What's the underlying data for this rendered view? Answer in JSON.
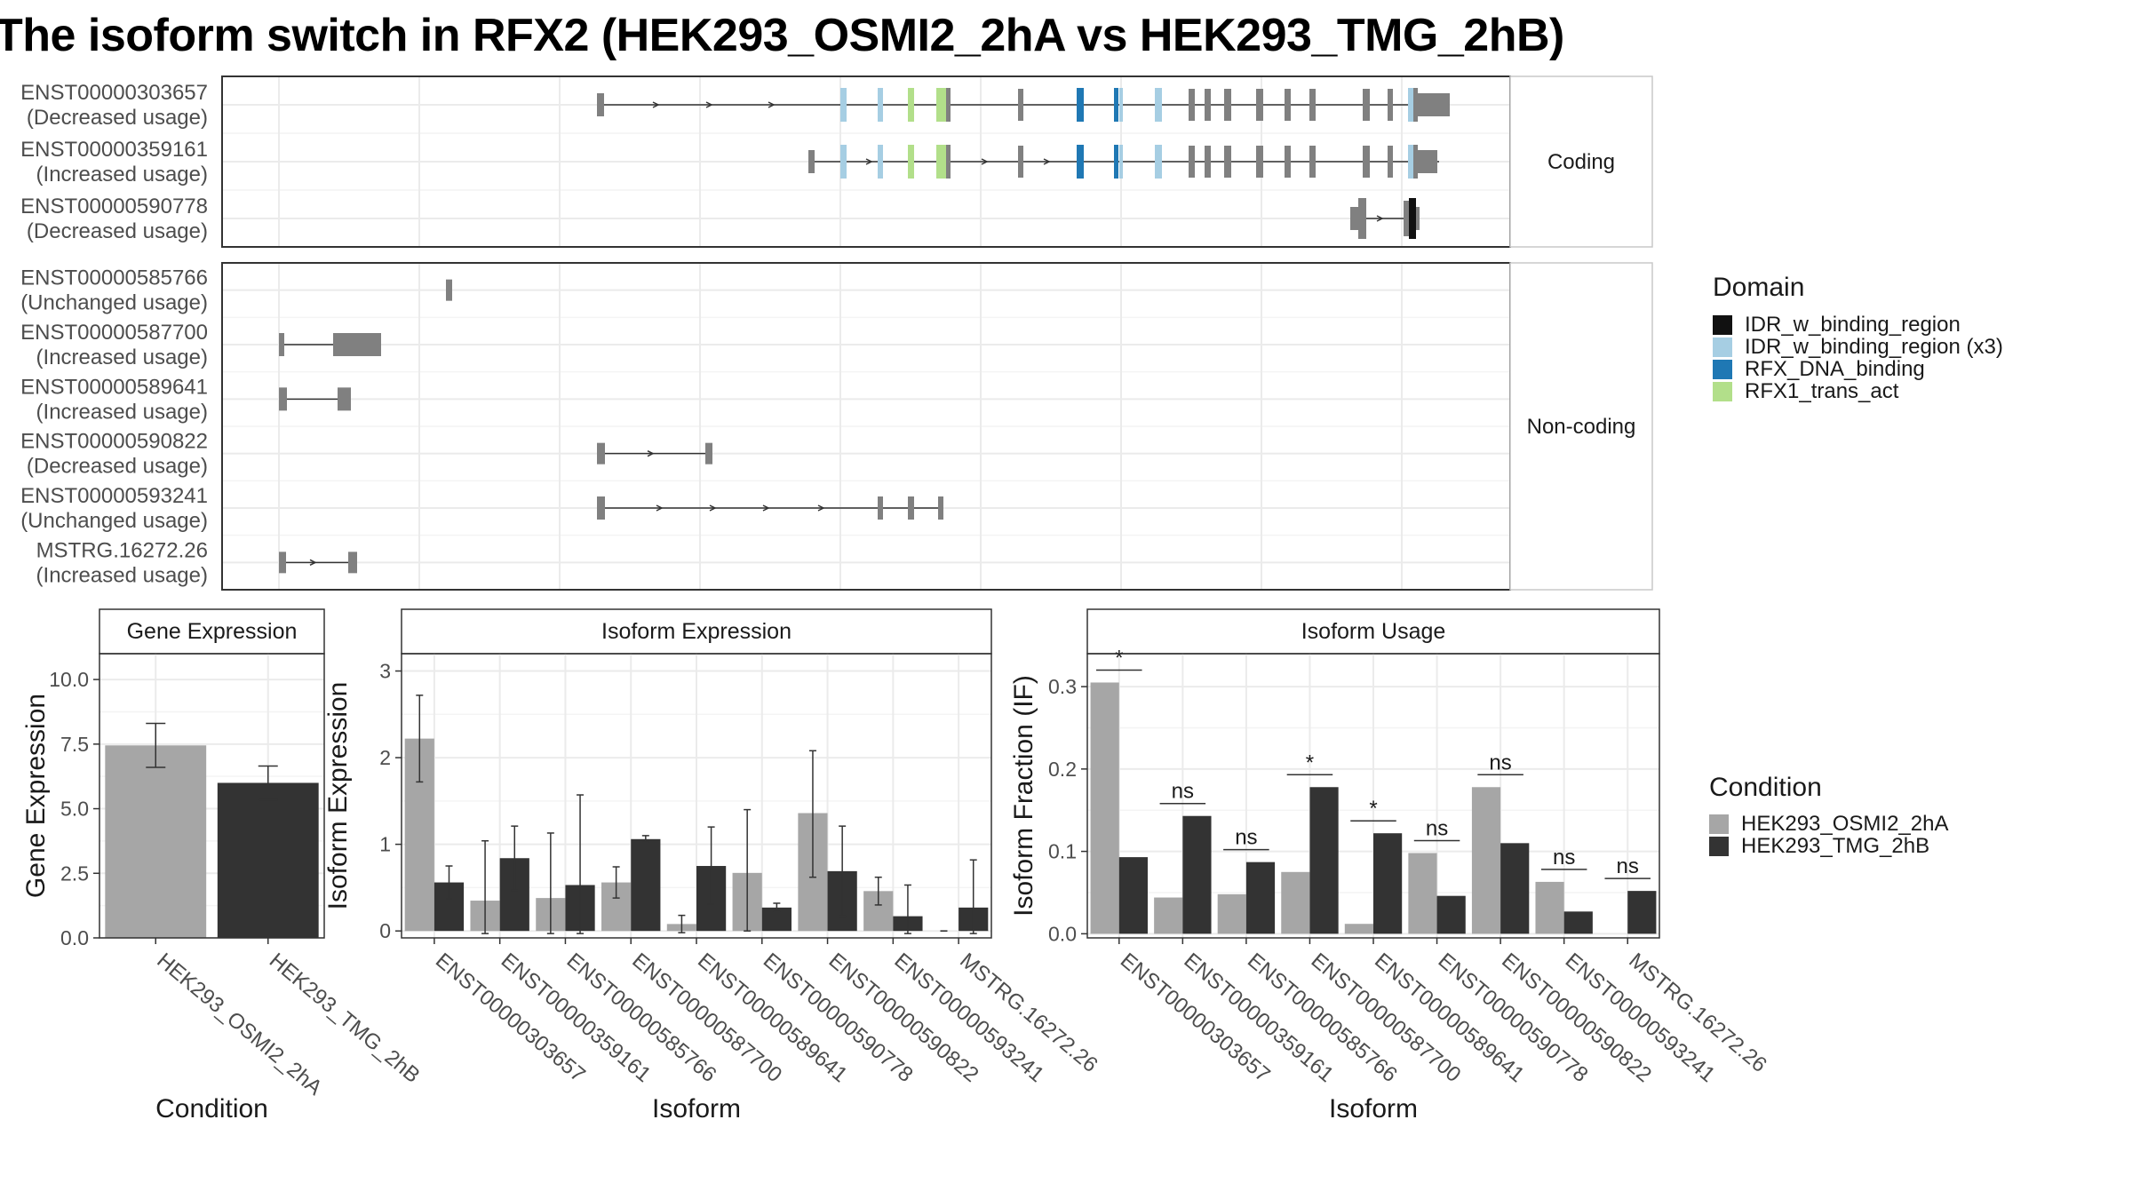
{
  "title": "The isoform switch in RFX2 (HEK293_OSMI2_2hA vs HEK293_TMG_2hB)",
  "colors": {
    "IDR": "#111111",
    "IDRx3": "#a6cee3",
    "RFX_DNA": "#1f78b4",
    "RFX1": "#b2df8a",
    "exon": "#808080",
    "cond1": "#a6a6a6",
    "cond2": "#333333"
  },
  "structure": {
    "coding_panel_label": "Coding",
    "noncoding_panel_label": "Non-coding",
    "coding": [
      {
        "id": "ENST00000303657",
        "usage": "(Decreased usage)"
      },
      {
        "id": "ENST00000359161",
        "usage": "(Increased usage)"
      },
      {
        "id": "ENST00000590778",
        "usage": "(Decreased usage)"
      }
    ],
    "noncoding": [
      {
        "id": "ENST00000585766",
        "usage": "(Unchanged usage)"
      },
      {
        "id": "ENST00000587700",
        "usage": "(Increased usage)"
      },
      {
        "id": "ENST00000589641",
        "usage": "(Increased usage)"
      },
      {
        "id": "ENST00000590822",
        "usage": "(Decreased usage)"
      },
      {
        "id": "ENST00000593241",
        "usage": "(Unchanged usage)"
      },
      {
        "id": "MSTRG.16272.26",
        "usage": "(Increased usage)"
      }
    ]
  },
  "legend_domain": {
    "title": "Domain",
    "items": [
      {
        "label": "IDR_w_binding_region",
        "color": "#111111"
      },
      {
        "label": "IDR_w_binding_region (x3)",
        "color": "#a6cee3"
      },
      {
        "label": "RFX_DNA_binding",
        "color": "#1f78b4"
      },
      {
        "label": "RFX1_trans_act",
        "color": "#b2df8a"
      }
    ]
  },
  "legend_condition": {
    "title": "Condition",
    "items": [
      {
        "label": "HEK293_OSMI2_2hA",
        "color": "#a6a6a6"
      },
      {
        "label": "HEK293_TMG_2hB",
        "color": "#333333"
      }
    ]
  },
  "chart_data": [
    {
      "type": "bar",
      "strip": "Gene Expression",
      "xlabel": "Condition",
      "ylabel": "Gene Expression",
      "categories": [
        "HEK293_OSMI2_2hA",
        "HEK293_TMG_2hB"
      ],
      "values": [
        7.45,
        6.0
      ],
      "error_low": [
        6.6,
        5.35
      ],
      "error_high": [
        8.3,
        6.65
      ],
      "ylim": [
        0,
        11
      ],
      "yticks": [
        0.0,
        2.5,
        5.0,
        7.5,
        10.0
      ],
      "ytick_labels": [
        "0.0",
        "2.5",
        "5.0",
        "7.5",
        "10.0"
      ]
    },
    {
      "type": "bar",
      "strip": "Isoform Expression",
      "xlabel": "Isoform",
      "ylabel": "Isoform Expression",
      "categories": [
        "ENST00000303657",
        "ENST00000359161",
        "ENST00000585766",
        "ENST00000587700",
        "ENST00000589641",
        "ENST00000590778",
        "ENST00000590822",
        "ENST00000593241",
        "MSTRG.16272.26"
      ],
      "ylim": [
        -0.08,
        3.2
      ],
      "yticks": [
        0,
        1,
        2,
        3
      ],
      "ytick_labels": [
        "0",
        "1",
        "2",
        "3"
      ],
      "series": [
        {
          "name": "HEK293_OSMI2_2hA",
          "values": [
            2.22,
            0.35,
            0.38,
            0.56,
            0.08,
            0.67,
            1.36,
            0.46,
            0.0
          ],
          "low": [
            1.72,
            -0.03,
            -0.03,
            0.38,
            -0.02,
            0.0,
            0.62,
            0.3,
            0.0
          ],
          "high": [
            2.72,
            1.04,
            1.13,
            0.74,
            0.18,
            1.4,
            2.08,
            0.62,
            0.0
          ]
        },
        {
          "name": "HEK293_TMG_2hB",
          "values": [
            0.56,
            0.84,
            0.53,
            1.06,
            0.75,
            0.27,
            0.69,
            0.17,
            0.27
          ],
          "low": [
            0.37,
            0.47,
            -0.03,
            1.02,
            0.31,
            0.22,
            0.17,
            -0.03,
            -0.03
          ],
          "high": [
            0.75,
            1.21,
            1.57,
            1.1,
            1.2,
            0.32,
            1.21,
            0.53,
            0.82
          ]
        }
      ]
    },
    {
      "type": "bar",
      "strip": "Isoform Usage",
      "xlabel": "Isoform",
      "ylabel": "Isoform Fraction (IF)",
      "categories": [
        "ENST00000303657",
        "ENST00000359161",
        "ENST00000585766",
        "ENST00000587700",
        "ENST00000589641",
        "ENST00000590778",
        "ENST00000590822",
        "ENST00000593241",
        "MSTRG.16272.26"
      ],
      "ylim": [
        -0.005,
        0.34
      ],
      "yticks": [
        0.0,
        0.1,
        0.2,
        0.3
      ],
      "ytick_labels": [
        "0.0",
        "0.1",
        "0.2",
        "0.3"
      ],
      "series": [
        {
          "name": "HEK293_OSMI2_2hA",
          "values": [
            0.305,
            0.044,
            0.048,
            0.075,
            0.012,
            0.098,
            0.178,
            0.063,
            0.0
          ]
        },
        {
          "name": "HEK293_TMG_2hB",
          "values": [
            0.093,
            0.143,
            0.087,
            0.178,
            0.122,
            0.046,
            0.11,
            0.027,
            0.052
          ]
        }
      ],
      "significance": [
        "*",
        "ns",
        "ns",
        "*",
        "*",
        "ns",
        "ns",
        "ns",
        "ns"
      ]
    }
  ]
}
